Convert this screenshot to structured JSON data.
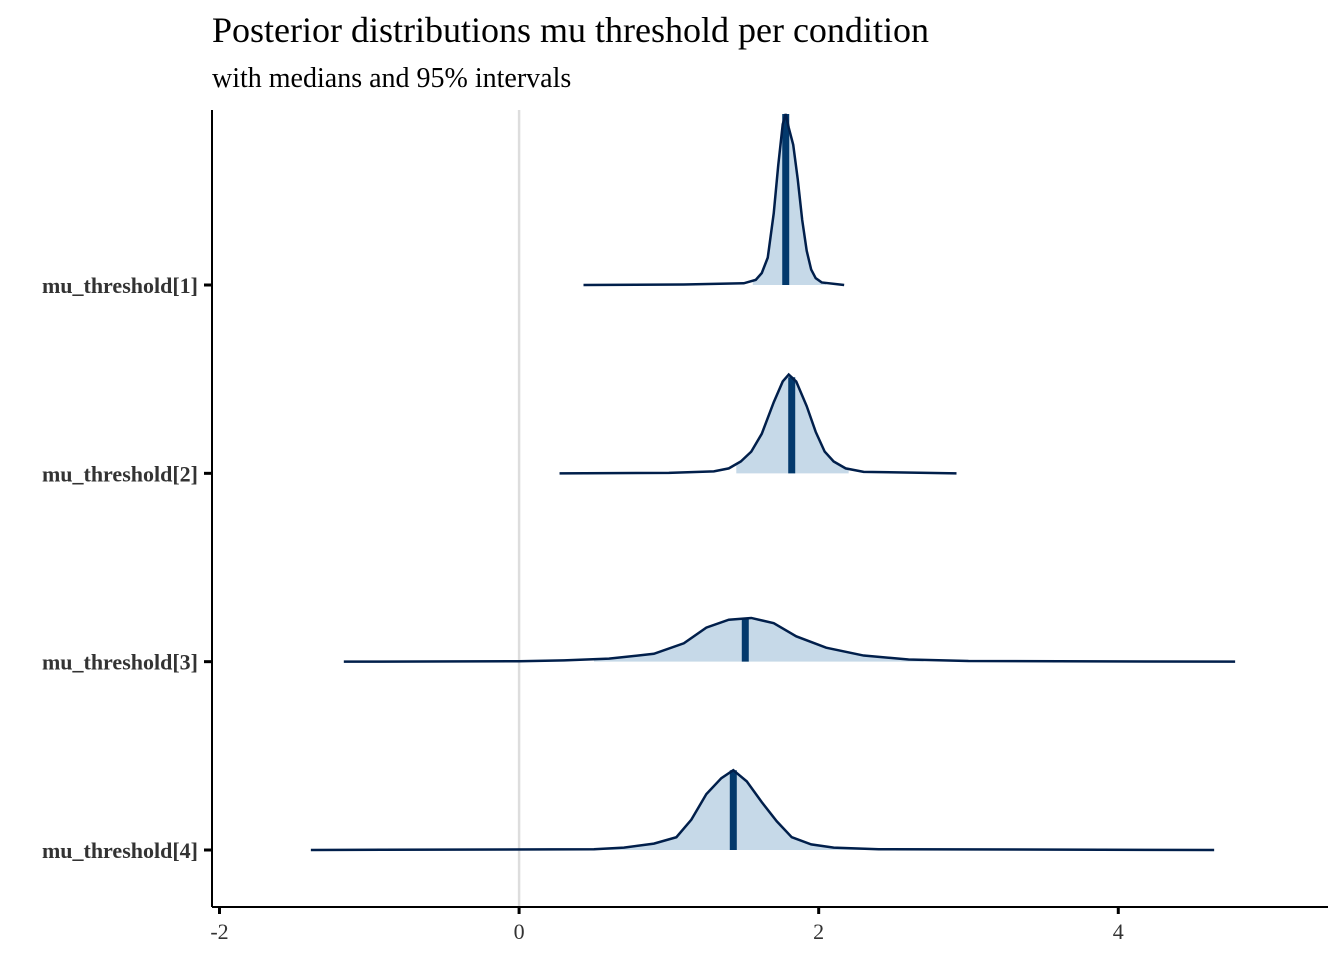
{
  "chart_data": {
    "type": "density",
    "title": "Posterior distributions mu threshold per condition",
    "subtitle": "with medians and 95% intervals",
    "xlabel": "",
    "ylabel": "",
    "xlim": [
      -2.05,
      5.4
    ],
    "x_ticks": [
      -2,
      0,
      2,
      4
    ],
    "x_tick_labels": [
      "-2",
      "0",
      "2",
      "4"
    ],
    "reference_line_x": 0,
    "grid": false,
    "legend": "none",
    "colors": {
      "fill": "#c6d9e8",
      "outline": "#011f4b",
      "median": "#03396c",
      "reference": "#dddddd"
    },
    "series": [
      {
        "name": "mu_threshold[1]",
        "median": 1.78,
        "interval_95": [
          1.56,
          2.05
        ],
        "range": [
          0.43,
          2.17
        ],
        "relative_height": 0.9,
        "density": [
          [
            0.43,
            0
          ],
          [
            1.1,
            0.003
          ],
          [
            1.5,
            0.01
          ],
          [
            1.58,
            0.03
          ],
          [
            1.62,
            0.07
          ],
          [
            1.66,
            0.16
          ],
          [
            1.7,
            0.42
          ],
          [
            1.73,
            0.7
          ],
          [
            1.76,
            0.94
          ],
          [
            1.78,
            1.0
          ],
          [
            1.8,
            0.92
          ],
          [
            1.83,
            0.82
          ],
          [
            1.86,
            0.62
          ],
          [
            1.89,
            0.38
          ],
          [
            1.92,
            0.2
          ],
          [
            1.95,
            0.09
          ],
          [
            1.98,
            0.04
          ],
          [
            2.02,
            0.015
          ],
          [
            2.17,
            0
          ]
        ]
      },
      {
        "name": "mu_threshold[2]",
        "median": 1.82,
        "interval_95": [
          1.45,
          2.2
        ],
        "range": [
          0.27,
          2.92
        ],
        "relative_height": 0.52,
        "density": [
          [
            0.27,
            0
          ],
          [
            1.0,
            0.005
          ],
          [
            1.3,
            0.02
          ],
          [
            1.4,
            0.05
          ],
          [
            1.48,
            0.12
          ],
          [
            1.55,
            0.22
          ],
          [
            1.62,
            0.4
          ],
          [
            1.7,
            0.72
          ],
          [
            1.76,
            0.93
          ],
          [
            1.8,
            1.0
          ],
          [
            1.85,
            0.93
          ],
          [
            1.92,
            0.68
          ],
          [
            1.98,
            0.42
          ],
          [
            2.04,
            0.22
          ],
          [
            2.1,
            0.12
          ],
          [
            2.18,
            0.05
          ],
          [
            2.3,
            0.015
          ],
          [
            2.92,
            0
          ]
        ]
      },
      {
        "name": "mu_threshold[3]",
        "median": 1.51,
        "interval_95": [
          0.5,
          2.7
        ],
        "range": [
          -1.17,
          4.78
        ],
        "relative_height": 0.23,
        "density": [
          [
            -1.17,
            0
          ],
          [
            0,
            0.01
          ],
          [
            0.3,
            0.03
          ],
          [
            0.6,
            0.07
          ],
          [
            0.9,
            0.18
          ],
          [
            1.1,
            0.42
          ],
          [
            1.25,
            0.78
          ],
          [
            1.4,
            0.96
          ],
          [
            1.55,
            1.0
          ],
          [
            1.7,
            0.88
          ],
          [
            1.85,
            0.58
          ],
          [
            2.05,
            0.32
          ],
          [
            2.3,
            0.14
          ],
          [
            2.6,
            0.05
          ],
          [
            3.0,
            0.015
          ],
          [
            4.78,
            0
          ]
        ]
      },
      {
        "name": "mu_threshold[4]",
        "median": 1.43,
        "interval_95": [
          0.5,
          2.3
        ],
        "range": [
          -1.39,
          4.64
        ],
        "relative_height": 0.42,
        "density": [
          [
            -1.39,
            0
          ],
          [
            0.5,
            0.01
          ],
          [
            0.7,
            0.03
          ],
          [
            0.9,
            0.08
          ],
          [
            1.05,
            0.16
          ],
          [
            1.15,
            0.38
          ],
          [
            1.25,
            0.7
          ],
          [
            1.35,
            0.9
          ],
          [
            1.43,
            1.0
          ],
          [
            1.52,
            0.86
          ],
          [
            1.62,
            0.6
          ],
          [
            1.72,
            0.36
          ],
          [
            1.82,
            0.16
          ],
          [
            1.95,
            0.07
          ],
          [
            2.1,
            0.03
          ],
          [
            2.4,
            0.01
          ],
          [
            4.64,
            0
          ]
        ]
      }
    ]
  }
}
